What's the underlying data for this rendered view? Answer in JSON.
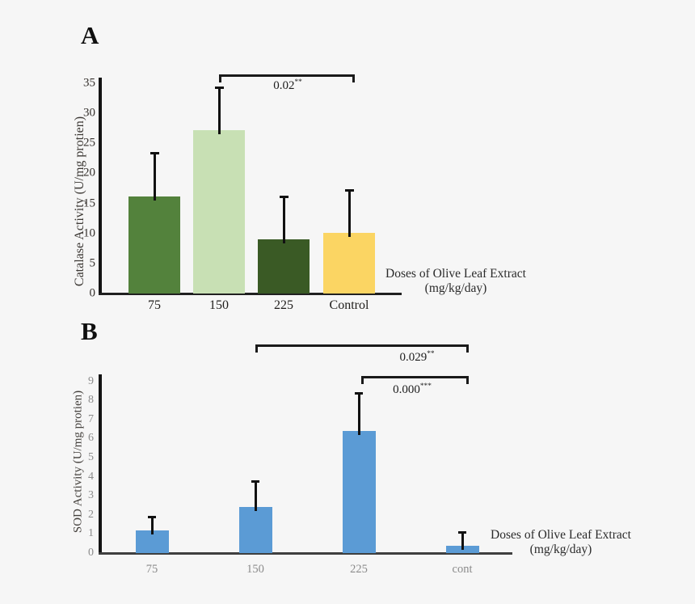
{
  "figure": {
    "background": "#f6f6f6",
    "axis_color": "#141414",
    "error_bar_color": "#111111",
    "bracket_color": "#1a1a1a"
  },
  "chart_data": [
    {
      "type": "bar",
      "panel": "A",
      "ylabel": "Catalase Activity (U/mg protien)",
      "xlabel_lines": [
        "Doses of Olive Leaf Extract",
        "(mg/kg/day)"
      ],
      "categories": [
        "75",
        "150",
        "225",
        "Control"
      ],
      "values": [
        16.2,
        27.2,
        9,
        10.1
      ],
      "error_upper": [
        23.5,
        34.4,
        16.3,
        17.3
      ],
      "bar_colors": [
        "#53823c",
        "#c8e0b4",
        "#3a5a25",
        "#fbd563"
      ],
      "ylim": [
        0,
        35
      ],
      "y_ticks": [
        0,
        5,
        10,
        15,
        20,
        25,
        30,
        35
      ],
      "grid": "off",
      "annotations": [
        {
          "from": "150",
          "to": "Control",
          "p": "0.02",
          "stars": "**"
        }
      ]
    },
    {
      "type": "bar",
      "panel": "B",
      "ylabel": "SOD Activity (U/mg protien)",
      "xlabel_lines": [
        "Doses of Olive Leaf Extract",
        "(mg/kg/day)"
      ],
      "categories": [
        "75",
        "150",
        "225",
        "cont"
      ],
      "values": [
        1.2,
        2.4,
        6.4,
        0.4
      ],
      "error_upper": [
        1.95,
        3.8,
        8.45,
        1.15
      ],
      "bar_colors": [
        "#5b9bd5",
        "#5b9bd5",
        "#5b9bd5",
        "#5b9bd5"
      ],
      "ylim": [
        0,
        9
      ],
      "y_ticks": [
        0,
        1,
        2,
        3,
        4,
        5,
        6,
        7,
        8,
        9
      ],
      "grid": "off",
      "annotations": [
        {
          "from": "150",
          "to": "cont",
          "p": "0.029",
          "stars": "**"
        },
        {
          "from": "225",
          "to": "cont",
          "p": "0.000",
          "stars": "***"
        }
      ]
    }
  ]
}
